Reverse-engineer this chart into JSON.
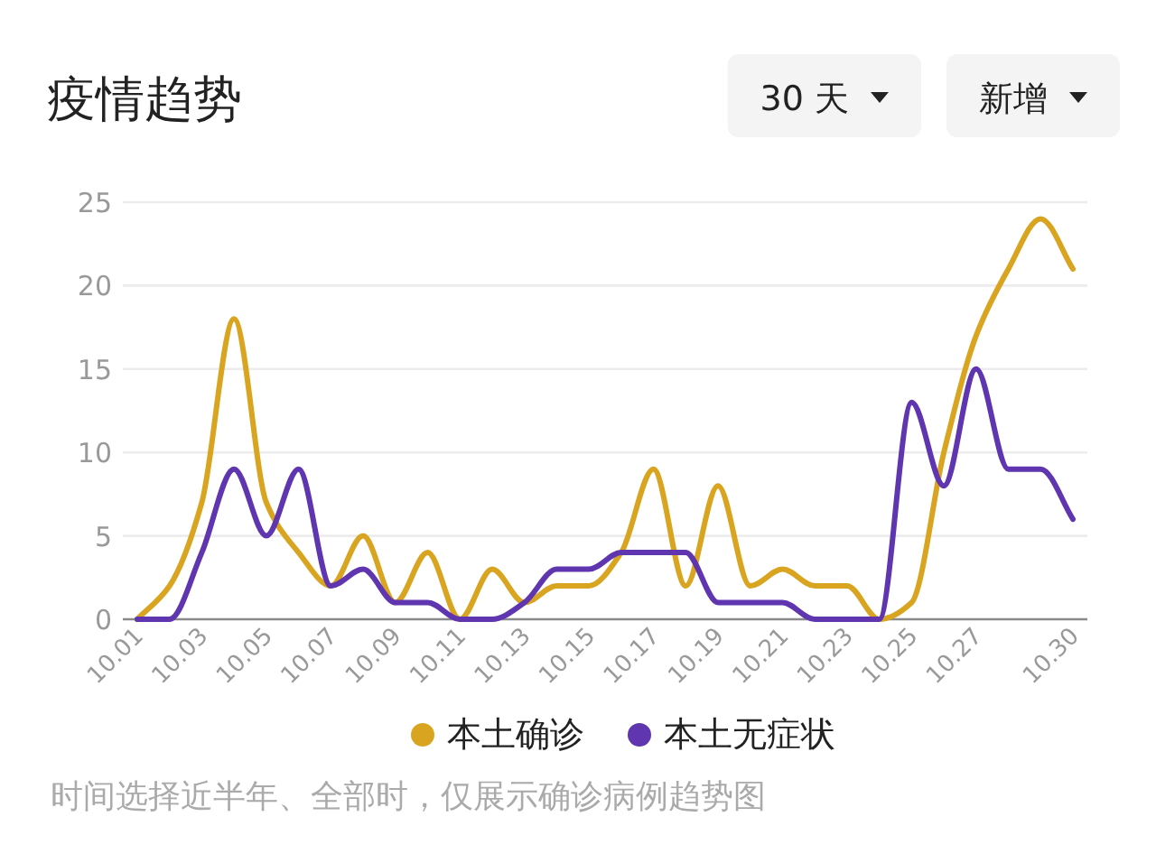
{
  "chart_data": {
    "type": "line",
    "title": "疫情趋势",
    "categories": [
      "10.01",
      null,
      "10.03",
      null,
      "10.05",
      null,
      "10.07",
      null,
      "10.09",
      null,
      "10.11",
      null,
      "10.13",
      null,
      "10.15",
      null,
      "10.17",
      null,
      "10.19",
      null,
      "10.21",
      null,
      "10.23",
      null,
      "10.25",
      null,
      "10.27",
      null,
      null,
      "10.30"
    ],
    "series": [
      {
        "name": "本土确诊",
        "color": "#d9a520",
        "values": [
          0,
          2,
          7,
          18,
          7,
          4,
          2,
          5,
          1,
          4,
          0,
          3,
          1,
          2,
          2,
          4,
          9,
          2,
          8,
          2,
          3,
          2,
          2,
          0,
          1,
          10,
          17,
          21,
          24,
          21
        ]
      },
      {
        "name": "本土无症状",
        "color": "#5f35b0",
        "values": [
          0,
          0,
          4,
          9,
          5,
          9,
          2,
          3,
          1,
          1,
          0,
          0,
          1,
          3,
          3,
          4,
          4,
          4,
          1,
          1,
          1,
          0,
          0,
          0,
          13,
          8,
          15,
          9,
          9,
          6
        ]
      }
    ],
    "ylim": [
      0,
      25
    ],
    "yticks": [
      0,
      5,
      10,
      15,
      20,
      25
    ],
    "grid": "y",
    "legend": "bottom",
    "annotations": [
      "30 天",
      "新增",
      "时间选择近半年、全部时，仅展示确诊病例趋势图"
    ]
  }
}
